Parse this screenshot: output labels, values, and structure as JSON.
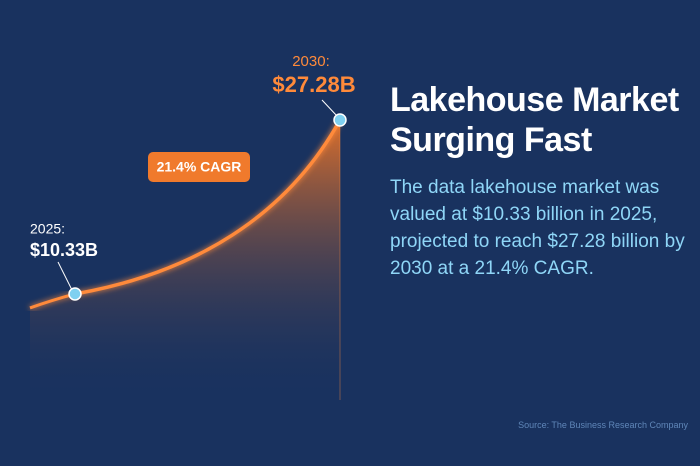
{
  "chart_data": {
    "type": "area",
    "title": "Lakehouse Market Surging Fast",
    "description": "The data lakehouse market was valued at $10.33 billion in 2025, projected to reach $27.28 billion by 2030 at a 21.4% CAGR.",
    "source": "Source: The Business Research Company",
    "annotation": "21.4% CAGR",
    "x": [
      2025,
      2030
    ],
    "x_labels": [
      "2025:",
      "2030:"
    ],
    "values": [
      10.33,
      27.28
    ],
    "value_labels": [
      "$10.33B",
      "$27.28B"
    ],
    "color": "#ff8a3a",
    "marker_color": "#7fd0f0"
  }
}
